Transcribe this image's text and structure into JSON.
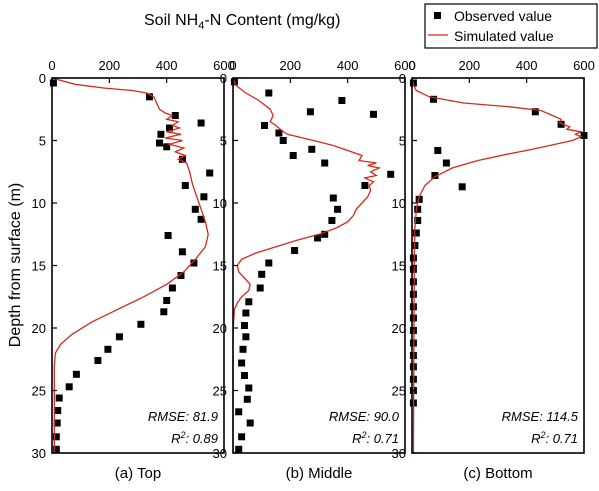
{
  "figure": {
    "top_title_main": "Soil NH",
    "top_title_sub": "4",
    "top_title_rest": "-N Content (mg/kg)",
    "ylabel": "Depth from surface (m)"
  },
  "legend": {
    "observed": "Observed value",
    "simulated": "Simulated value"
  },
  "colors": {
    "simulated": "#d42a1c",
    "observed": "#000000"
  },
  "chart_data": [
    {
      "type": "scatter",
      "subtitle": "(a) Top",
      "xlim": [
        0,
        600
      ],
      "xticks": [
        "0",
        "200",
        "400",
        "600"
      ],
      "ylim": [
        30,
        0
      ],
      "yticks": [
        "0",
        "5",
        "10",
        "15",
        "20",
        "25",
        "30"
      ],
      "grid": false,
      "stats": {
        "rmse": "RMSE: 81.9",
        "r2_prefix": "R",
        "r2_exp": "2",
        "r2_value": ": 0.89"
      },
      "series": [
        {
          "name": "Observed value",
          "kind": "points",
          "points": [
            [
              5,
              0.4
            ],
            [
              340,
              1.5
            ],
            [
              430,
              3.0
            ],
            [
              520,
              3.6
            ],
            [
              410,
              4.0
            ],
            [
              380,
              4.5
            ],
            [
              375,
              5.2
            ],
            [
              400,
              5.5
            ],
            [
              455,
              6.5
            ],
            [
              550,
              7.6
            ],
            [
              465,
              8.6
            ],
            [
              530,
              9.5
            ],
            [
              500,
              10.5
            ],
            [
              520,
              11.3
            ],
            [
              405,
              12.6
            ],
            [
              455,
              13.9
            ],
            [
              495,
              14.8
            ],
            [
              450,
              15.8
            ],
            [
              420,
              16.8
            ],
            [
              400,
              17.8
            ],
            [
              390,
              18.7
            ],
            [
              310,
              19.7
            ],
            [
              235,
              20.7
            ],
            [
              195,
              21.7
            ],
            [
              160,
              22.6
            ],
            [
              85,
              23.7
            ],
            [
              60,
              24.7
            ],
            [
              25,
              25.6
            ],
            [
              20,
              26.6
            ],
            [
              18,
              27.6
            ],
            [
              15,
              28.7
            ],
            [
              15,
              29.7
            ]
          ]
        },
        {
          "name": "Simulated value",
          "kind": "line",
          "points": [
            [
              0,
              0
            ],
            [
              80,
              0.5
            ],
            [
              180,
              0.8
            ],
            [
              280,
              1.0
            ],
            [
              330,
              1.2
            ],
            [
              355,
              1.5
            ],
            [
              365,
              2.0
            ],
            [
              375,
              2.5
            ],
            [
              395,
              2.8
            ],
            [
              420,
              3.0
            ],
            [
              400,
              3.3
            ],
            [
              440,
              3.5
            ],
            [
              420,
              3.8
            ],
            [
              445,
              4.0
            ],
            [
              400,
              4.3
            ],
            [
              450,
              4.5
            ],
            [
              395,
              4.8
            ],
            [
              455,
              5.0
            ],
            [
              410,
              5.3
            ],
            [
              460,
              5.6
            ],
            [
              430,
              5.9
            ],
            [
              465,
              6.2
            ],
            [
              440,
              6.5
            ],
            [
              470,
              6.8
            ],
            [
              480,
              7.5
            ],
            [
              490,
              8.5
            ],
            [
              505,
              9.5
            ],
            [
              520,
              10.5
            ],
            [
              535,
              11.5
            ],
            [
              545,
              12.5
            ],
            [
              535,
              13.5
            ],
            [
              500,
              14.5
            ],
            [
              460,
              15.5
            ],
            [
              400,
              16.5
            ],
            [
              320,
              17.5
            ],
            [
              230,
              18.5
            ],
            [
              140,
              19.5
            ],
            [
              70,
              20.5
            ],
            [
              30,
              21.3
            ],
            [
              12,
              22.0
            ],
            [
              8,
              23
            ],
            [
              8,
              30
            ]
          ]
        }
      ]
    },
    {
      "type": "scatter",
      "subtitle": "(b) Middle",
      "xlim": [
        0,
        600
      ],
      "xticks": [
        "0",
        "200",
        "400",
        "600"
      ],
      "ylim": [
        30,
        0
      ],
      "yticks": [
        "0",
        "5",
        "10",
        "15",
        "20",
        "25",
        "30"
      ],
      "grid": false,
      "stats": {
        "rmse": "RMSE: 90.0",
        "r2_prefix": "R",
        "r2_exp": "2",
        "r2_value": ": 0.71"
      },
      "series": [
        {
          "name": "Observed value",
          "kind": "points",
          "points": [
            [
              5,
              0.3
            ],
            [
              125,
              1.2
            ],
            [
              380,
              1.8
            ],
            [
              270,
              2.7
            ],
            [
              490,
              2.9
            ],
            [
              110,
              3.8
            ],
            [
              160,
              4.4
            ],
            [
              175,
              5.0
            ],
            [
              275,
              5.7
            ],
            [
              210,
              6.2
            ],
            [
              320,
              6.8
            ],
            [
              550,
              7.7
            ],
            [
              460,
              8.6
            ],
            [
              350,
              9.6
            ],
            [
              365,
              10.5
            ],
            [
              345,
              11.4
            ],
            [
              320,
              12.5
            ],
            [
              295,
              12.8
            ],
            [
              215,
              13.8
            ],
            [
              125,
              14.8
            ],
            [
              100,
              15.7
            ],
            [
              95,
              16.8
            ],
            [
              55,
              17.9
            ],
            [
              45,
              18.8
            ],
            [
              40,
              19.8
            ],
            [
              45,
              20.7
            ],
            [
              35,
              21.7
            ],
            [
              30,
              22.8
            ],
            [
              40,
              23.8
            ],
            [
              55,
              24.8
            ],
            [
              50,
              25.7
            ],
            [
              20,
              26.7
            ],
            [
              60,
              27.6
            ],
            [
              30,
              28.7
            ],
            [
              20,
              29.7
            ]
          ]
        },
        {
          "name": "Simulated value",
          "kind": "line",
          "points": [
            [
              0,
              0
            ],
            [
              10,
              0.6
            ],
            [
              45,
              1.2
            ],
            [
              90,
              1.8
            ],
            [
              130,
              2.5
            ],
            [
              140,
              3.0
            ],
            [
              130,
              3.5
            ],
            [
              150,
              3.8
            ],
            [
              170,
              4.2
            ],
            [
              190,
              4.5
            ],
            [
              280,
              5.0
            ],
            [
              350,
              5.4
            ],
            [
              400,
              5.8
            ],
            [
              450,
              6.2
            ],
            [
              440,
              6.6
            ],
            [
              500,
              6.8
            ],
            [
              470,
              7.0
            ],
            [
              510,
              7.2
            ],
            [
              480,
              7.5
            ],
            [
              500,
              7.8
            ],
            [
              460,
              8.0
            ],
            [
              490,
              8.3
            ],
            [
              475,
              8.6
            ],
            [
              480,
              9.0
            ],
            [
              470,
              9.5
            ],
            [
              450,
              10.0
            ],
            [
              430,
              10.5
            ],
            [
              420,
              11.0
            ],
            [
              400,
              11.5
            ],
            [
              360,
              12.0
            ],
            [
              300,
              12.5
            ],
            [
              220,
              13.0
            ],
            [
              150,
              13.5
            ],
            [
              80,
              14.0
            ],
            [
              30,
              14.5
            ],
            [
              15,
              15.0
            ],
            [
              20,
              15.5
            ],
            [
              40,
              16.0
            ],
            [
              60,
              16.5
            ],
            [
              55,
              17.0
            ],
            [
              30,
              17.5
            ],
            [
              15,
              18.0
            ],
            [
              5,
              18.5
            ],
            [
              2,
              19.5
            ],
            [
              0,
              21
            ],
            [
              0,
              30
            ]
          ]
        }
      ]
    },
    {
      "type": "scatter",
      "subtitle": "(c) Bottom",
      "xlim": [
        0,
        600
      ],
      "xticks": [
        "0",
        "200",
        "400",
        "600"
      ],
      "ylim": [
        30,
        0
      ],
      "yticks": [
        "0",
        "5",
        "10",
        "15",
        "20",
        "25",
        "30"
      ],
      "grid": false,
      "stats": {
        "rmse": "RMSE: 114.5",
        "r2_prefix": "R",
        "r2_exp": "2",
        "r2_value": ": 0.71"
      },
      "series": [
        {
          "name": "Observed value",
          "kind": "points",
          "points": [
            [
              5,
              0.4
            ],
            [
              75,
              1.7
            ],
            [
              430,
              2.7
            ],
            [
              520,
              3.7
            ],
            [
              600,
              4.6
            ],
            [
              90,
              5.8
            ],
            [
              120,
              6.8
            ],
            [
              80,
              7.8
            ],
            [
              175,
              8.7
            ],
            [
              25,
              9.7
            ],
            [
              20,
              10.5
            ],
            [
              20,
              11.4
            ],
            [
              15,
              12.4
            ],
            [
              10,
              13.4
            ],
            [
              5,
              14.4
            ],
            [
              5,
              15.3
            ],
            [
              5,
              16.3
            ],
            [
              5,
              17.3
            ],
            [
              5,
              18.3
            ],
            [
              5,
              19.2
            ],
            [
              5,
              20.2
            ],
            [
              5,
              21.2
            ],
            [
              5,
              22.2
            ],
            [
              5,
              23.1
            ],
            [
              5,
              24.1
            ],
            [
              5,
              25.0
            ],
            [
              5,
              26.0
            ]
          ]
        },
        {
          "name": "Simulated value",
          "kind": "line",
          "points": [
            [
              0,
              0
            ],
            [
              5,
              0.5
            ],
            [
              15,
              1.0
            ],
            [
              60,
              1.5
            ],
            [
              180,
              2.0
            ],
            [
              340,
              2.3
            ],
            [
              450,
              2.6
            ],
            [
              490,
              3.0
            ],
            [
              520,
              3.3
            ],
            [
              515,
              3.6
            ],
            [
              550,
              3.9
            ],
            [
              540,
              4.1
            ],
            [
              590,
              4.3
            ],
            [
              570,
              4.5
            ],
            [
              590,
              4.7
            ],
            [
              560,
              5.0
            ],
            [
              500,
              5.3
            ],
            [
              420,
              5.7
            ],
            [
              330,
              6.1
            ],
            [
              230,
              6.6
            ],
            [
              140,
              7.2
            ],
            [
              80,
              7.9
            ],
            [
              45,
              8.6
            ],
            [
              25,
              9.5
            ],
            [
              15,
              10.5
            ],
            [
              10,
              12
            ],
            [
              8,
              14
            ],
            [
              7,
              20
            ],
            [
              5,
              30
            ]
          ]
        }
      ]
    }
  ]
}
